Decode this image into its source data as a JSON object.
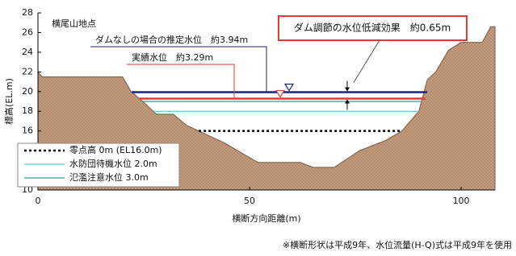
{
  "chart_data": {
    "type": "cross-section",
    "title": "横尾山地点",
    "xlabel": "横断方向距離(m)",
    "ylabel": "標高(EL.m)",
    "xlim": [
      0,
      108
    ],
    "ylim": [
      10,
      28
    ],
    "xticks": [
      0,
      50,
      100
    ],
    "yticks": [
      10,
      12,
      14,
      16,
      18,
      20,
      22,
      24,
      26,
      28
    ],
    "ground": {
      "color": "#c9a184",
      "x": [
        0,
        1,
        20,
        22,
        24,
        28,
        32,
        35,
        40,
        44,
        48,
        52,
        62,
        65,
        70,
        76,
        82,
        86,
        89,
        90,
        91,
        92,
        94,
        97,
        100,
        105,
        107,
        108
      ],
      "values": [
        22,
        21.5,
        21.5,
        20,
        19.3,
        17.7,
        17.7,
        16.6,
        15.6,
        14.8,
        13.8,
        12.8,
        12.8,
        12.3,
        12.3,
        14,
        15,
        16,
        17.5,
        18,
        19.6,
        21.2,
        22,
        24.2,
        25,
        25,
        26.6,
        26.6
      ]
    },
    "levels": [
      {
        "name": "零点高 0m (EL16.0m)",
        "value": 16.0,
        "color": "#000000",
        "dash": true
      },
      {
        "name": "水防団待機水位 2.0m",
        "value": 18.0,
        "color": "#6cc6dc",
        "dash": false
      },
      {
        "name": "氾濫注意水位 3.0m",
        "value": 19.0,
        "color": "#2a9d8f",
        "dash": false
      }
    ],
    "annotations": [
      {
        "text": "ダムなしの場合の推定水位　約3.94m",
        "value": 19.94,
        "color": "#1a237e"
      },
      {
        "text": "実績水位　約3.29m",
        "value": 19.29,
        "color": "#e53935"
      }
    ],
    "callout": "ダム調節の水位低減効果　約0.65m",
    "note": "※横断形状は平成9年、水位流量(H-Q)式は平成9年を使用"
  }
}
